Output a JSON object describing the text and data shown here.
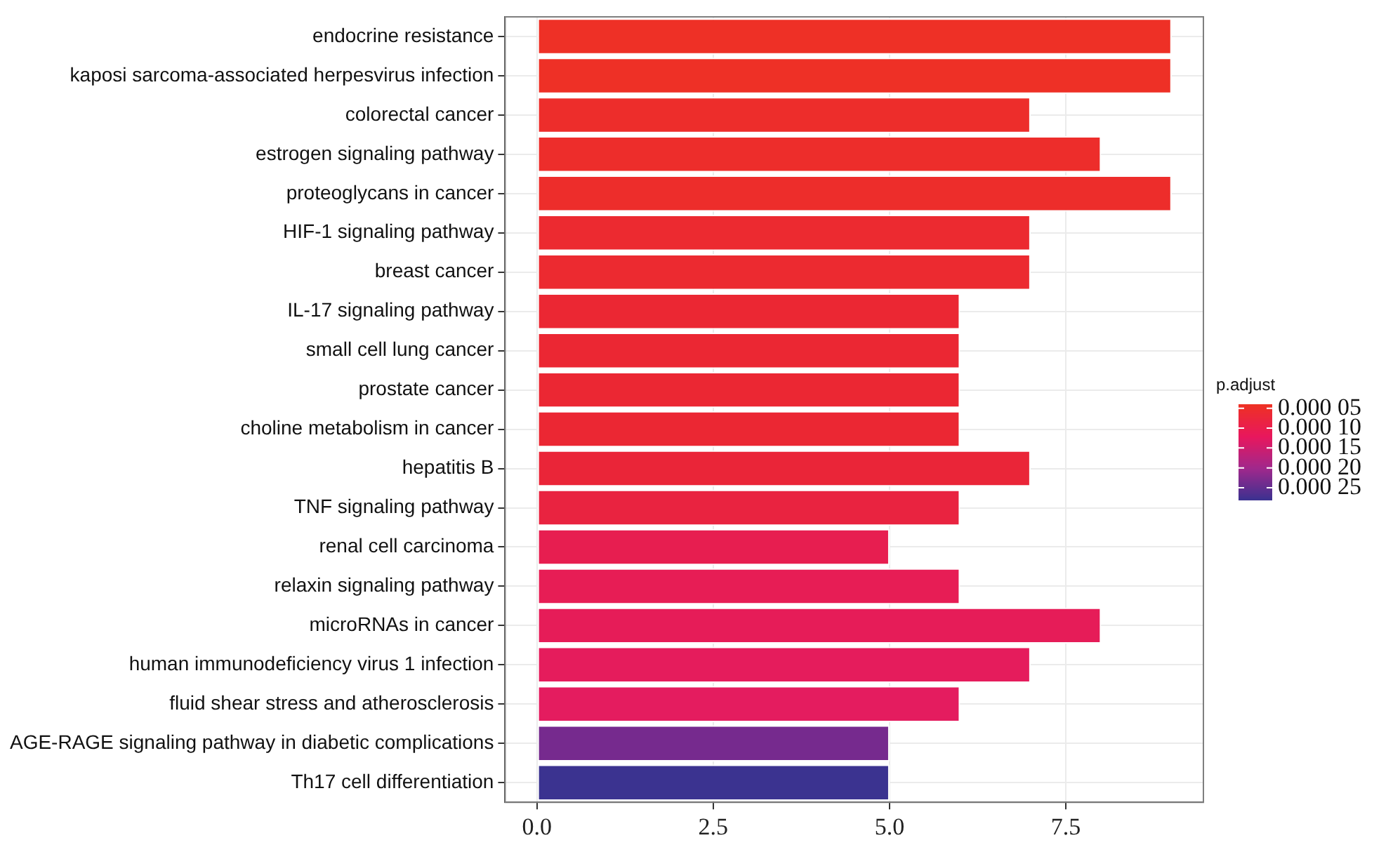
{
  "chart_data": {
    "type": "bar",
    "orientation": "horizontal",
    "categories": [
      "endocrine resistance",
      "kaposi sarcoma-associated herpesvirus infection",
      "colorectal cancer",
      "estrogen signaling pathway",
      "proteoglycans in cancer",
      "HIF-1 signaling pathway",
      "breast cancer",
      "IL-17 signaling pathway",
      "small cell lung cancer",
      "prostate cancer",
      "choline metabolism in cancer",
      "hepatitis B",
      "TNF signaling pathway",
      "renal cell carcinoma",
      "relaxin signaling pathway",
      "microRNAs in cancer",
      "human immunodeficiency virus 1 infection",
      "fluid shear stress and atherosclerosis",
      "AGE-RAGE signaling pathway in diabetic complications",
      "Th17 cell differentiation"
    ],
    "values": [
      9,
      9,
      7,
      8,
      9,
      7,
      7,
      6,
      6,
      6,
      6,
      7,
      6,
      5,
      6,
      8,
      7,
      6,
      5,
      5
    ],
    "colors": [
      "#ee3026",
      "#ee3026",
      "#ed2d2b",
      "#ed2d2b",
      "#ed2d2b",
      "#ec2a30",
      "#ec2a30",
      "#eb2733",
      "#eb2733",
      "#eb2733",
      "#eb2733",
      "#ea2538",
      "#e92340",
      "#e71e50",
      "#e71d55",
      "#e61c58",
      "#e51c5c",
      "#e41c5f",
      "#762a8e",
      "#3b3390"
    ],
    "xlim": [
      -0.45,
      9.45
    ],
    "xticks": [
      {
        "value": 0,
        "label": "0.0"
      },
      {
        "value": 2.5,
        "label": "2.5"
      },
      {
        "value": 5,
        "label": "5.0"
      },
      {
        "value": 7.5,
        "label": "7.5"
      }
    ],
    "grid": true,
    "clabel": "p.adjust",
    "clim": [
      4e-05,
      0.00028
    ],
    "cticks": [
      {
        "value": 5e-05,
        "label": "0.000 05"
      },
      {
        "value": 0.0001,
        "label": "0.000 10"
      },
      {
        "value": 0.00015,
        "label": "0.000 15"
      },
      {
        "value": 0.0002,
        "label": "0.000 20"
      },
      {
        "value": 0.00025,
        "label": "0.000 25"
      }
    ]
  }
}
